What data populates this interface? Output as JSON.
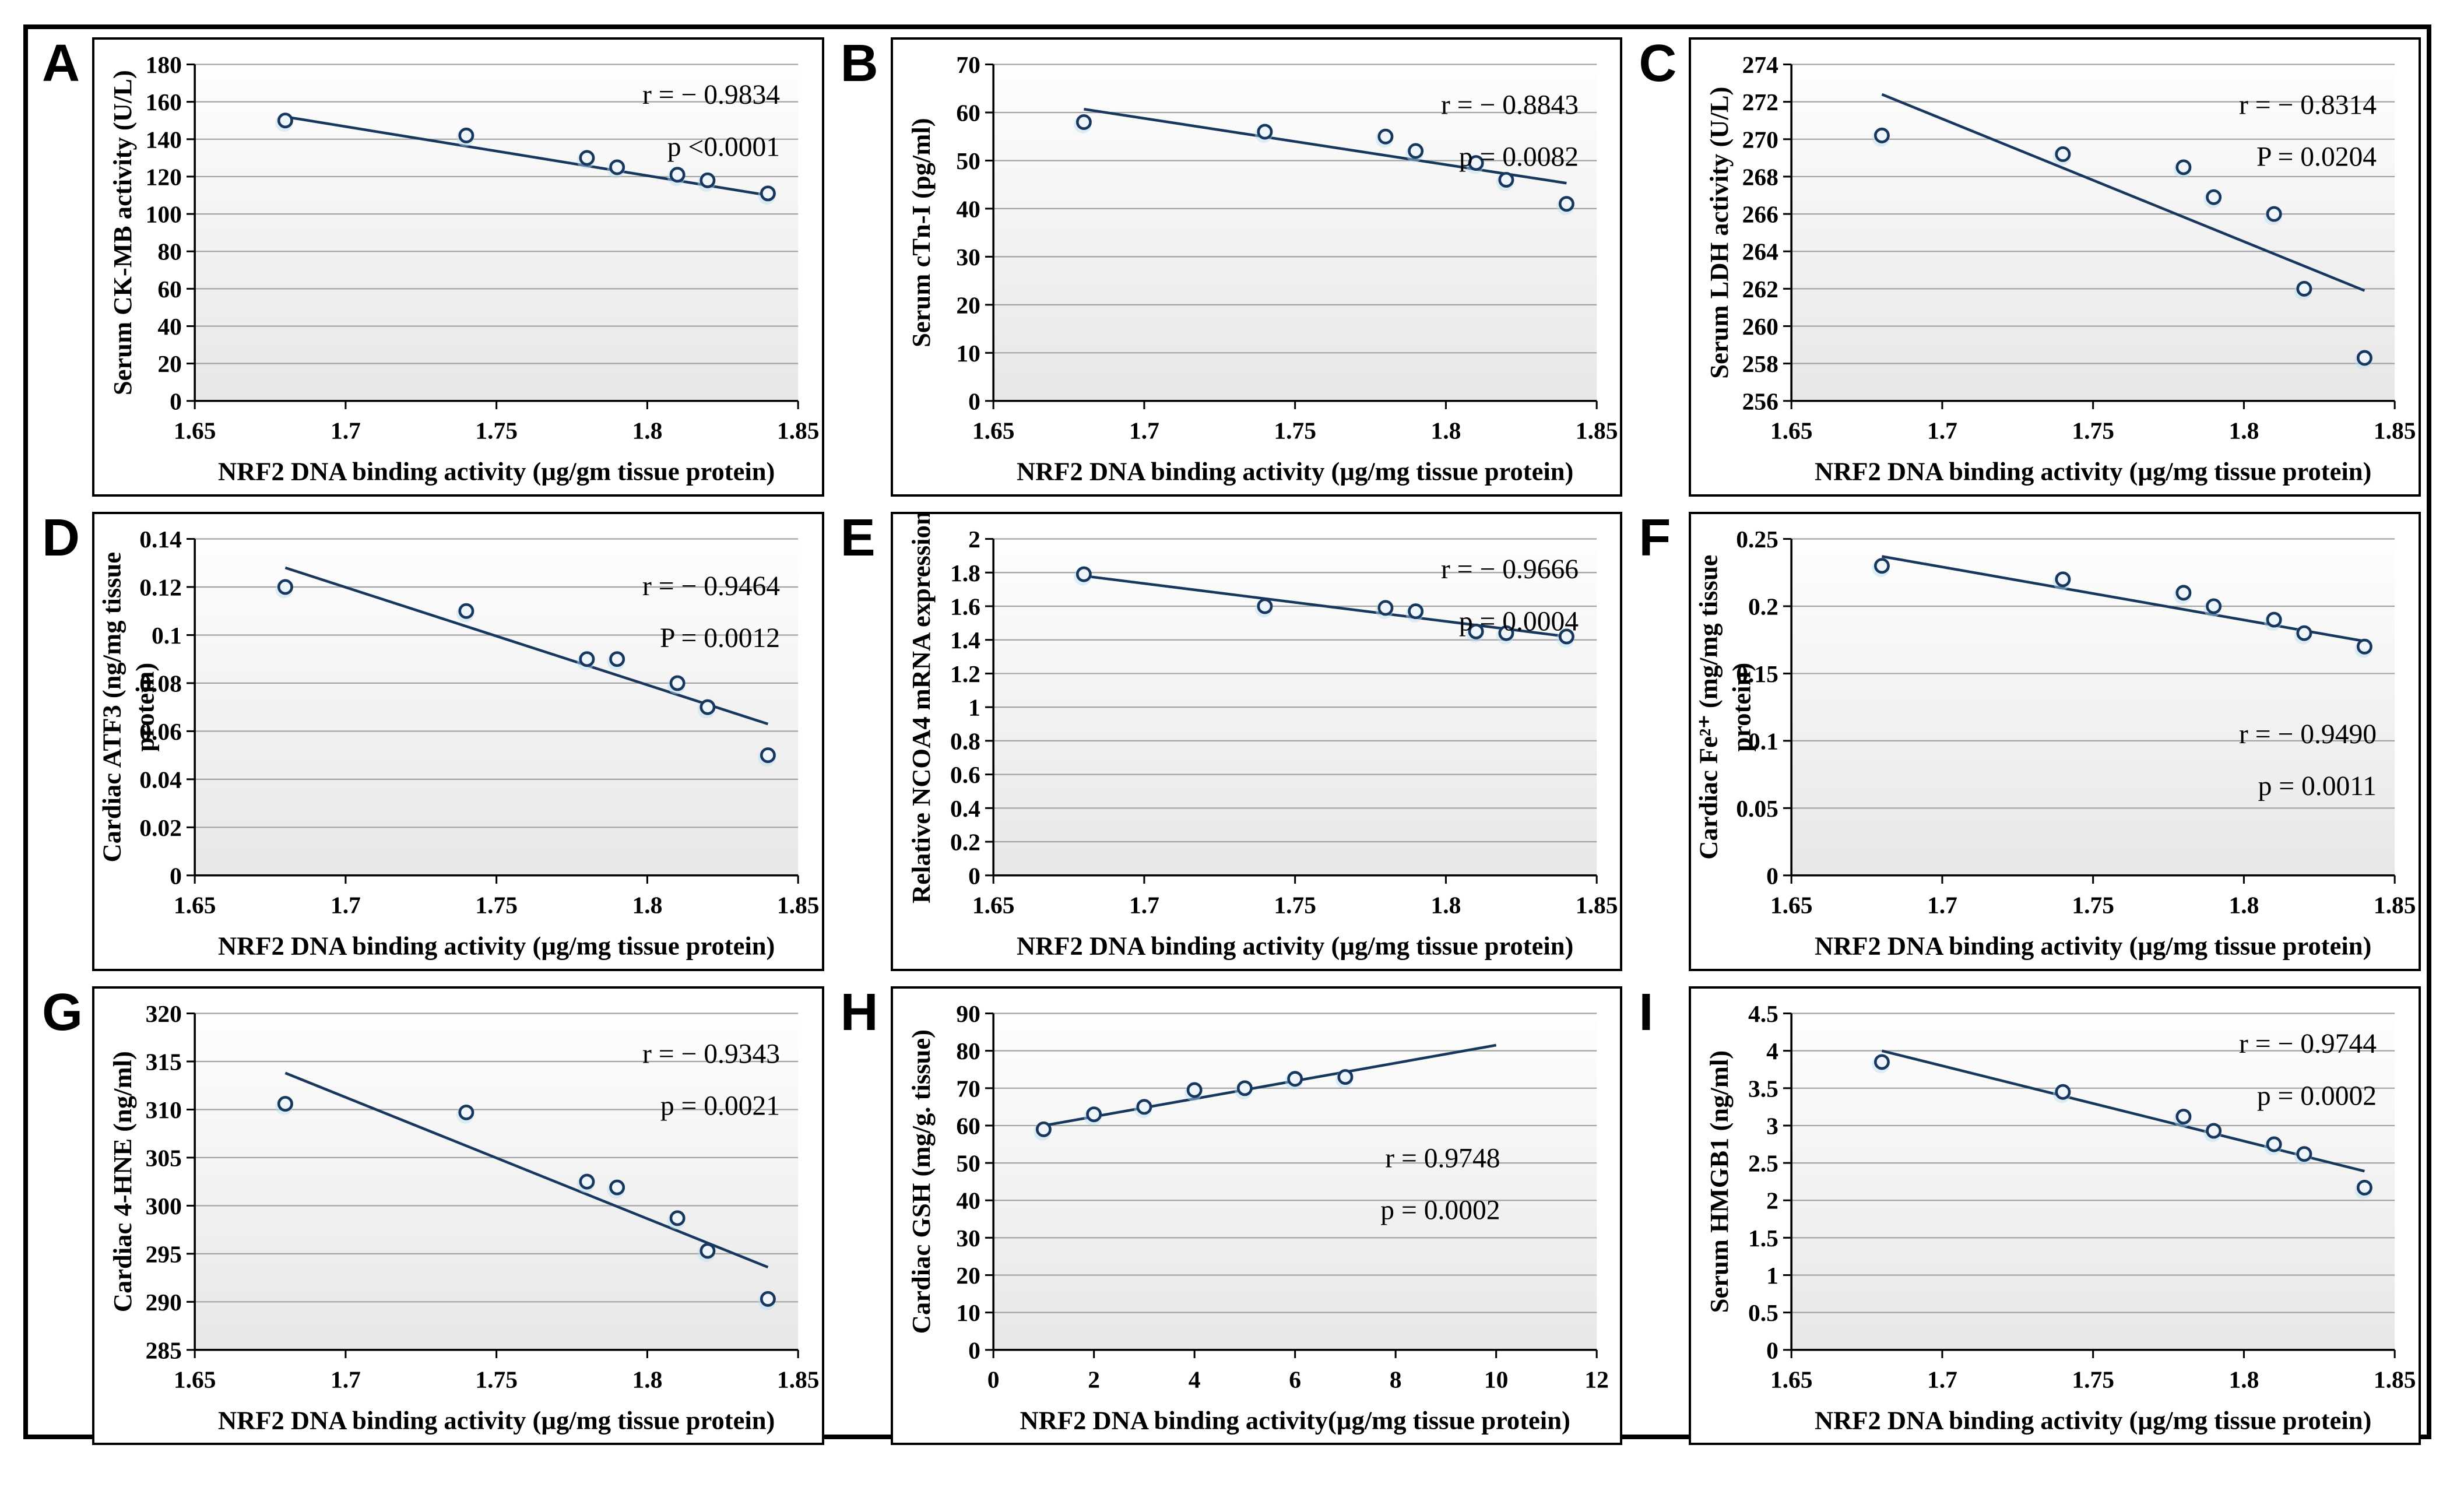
{
  "figure": {
    "description": "Correlation scatter plots between NRF2 DNA binding activity and cardiac/serum markers",
    "panel_letters": [
      "A",
      "B",
      "C",
      "D",
      "E",
      "F",
      "G",
      "H",
      "I"
    ]
  },
  "style": {
    "marker_color": "#17375e",
    "marker_fill": "#eef6fc",
    "halo_color": "#b8ddf0",
    "trend_color": "#17375e",
    "grid_color": "#a3a3a3",
    "axis_color": "#000000",
    "plot_bg_top": "#fefefe",
    "plot_bg_bottom": "#e7e7e7"
  },
  "chart_data": [
    {
      "panel": "A",
      "type": "scatter",
      "ylabel": "Serum CK-MB activity (U/L)",
      "ylabel2": "",
      "xlabel": "NRF2 DNA binding activity (µg/gm tissue protein)",
      "x": [
        1.68,
        1.74,
        1.78,
        1.79,
        1.81,
        1.82,
        1.84
      ],
      "y": [
        150,
        142,
        130,
        125,
        121,
        118,
        111
      ],
      "xlim": [
        1.65,
        1.85
      ],
      "ylim": [
        0,
        180
      ],
      "xticks": [
        1.65,
        1.7,
        1.75,
        1.8,
        1.85
      ],
      "yticks": [
        0,
        20,
        40,
        60,
        80,
        100,
        120,
        140,
        160,
        180
      ],
      "trend": {
        "x1": 1.68,
        "y1": 152,
        "x2": 1.84,
        "y2": 110
      },
      "r_label": "r = − 0.9834",
      "p_label": "p <0.0001",
      "ann_x": 0.97,
      "ann_y": 0.04
    },
    {
      "panel": "B",
      "type": "scatter",
      "ylabel": "Serum cTn-I (pg/ml)",
      "ylabel2": "",
      "xlabel": "NRF2 DNA binding activity (µg/mg tissue protein)",
      "x": [
        1.68,
        1.74,
        1.78,
        1.79,
        1.81,
        1.82,
        1.84
      ],
      "y": [
        58,
        56,
        55,
        52,
        49.5,
        46,
        41
      ],
      "xlim": [
        1.65,
        1.85
      ],
      "ylim": [
        0,
        70
      ],
      "xticks": [
        1.65,
        1.7,
        1.75,
        1.8,
        1.85
      ],
      "yticks": [
        0,
        10,
        20,
        30,
        40,
        50,
        60,
        70
      ],
      "trend": {
        "x1": 1.68,
        "y1": 60.7,
        "x2": 1.84,
        "y2": 45.3
      },
      "r_label": "r = − 0.8843",
      "p_label": "p = 0.0082",
      "ann_x": 0.97,
      "ann_y": 0.07
    },
    {
      "panel": "C",
      "type": "scatter",
      "ylabel": "Serum LDH activity (U/L)",
      "ylabel2": "",
      "xlabel": "NRF2 DNA binding activity (µg/mg tissue protein)",
      "x": [
        1.68,
        1.74,
        1.78,
        1.79,
        1.81,
        1.82,
        1.84
      ],
      "y": [
        270.2,
        269.2,
        268.5,
        266.9,
        266.0,
        262.0,
        258.3
      ],
      "xlim": [
        1.65,
        1.85
      ],
      "ylim": [
        256,
        274
      ],
      "xticks": [
        1.65,
        1.7,
        1.75,
        1.8,
        1.85
      ],
      "yticks": [
        256,
        258,
        260,
        262,
        264,
        266,
        268,
        270,
        272,
        274
      ],
      "trend": {
        "x1": 1.68,
        "y1": 272.4,
        "x2": 1.84,
        "y2": 261.9
      },
      "r_label": "r = − 0.8314",
      "p_label": "P = 0.0204",
      "ann_x": 0.97,
      "ann_y": 0.07
    },
    {
      "panel": "D",
      "type": "scatter",
      "ylabel": "Cardiac ATF3 (ng/mg tissue",
      "ylabel2": "protein)",
      "xlabel": "NRF2 DNA binding activity (µg/mg tissue protein)",
      "x": [
        1.68,
        1.74,
        1.78,
        1.79,
        1.81,
        1.82,
        1.84
      ],
      "y": [
        0.12,
        0.11,
        0.09,
        0.09,
        0.08,
        0.07,
        0.05
      ],
      "xlim": [
        1.65,
        1.85
      ],
      "ylim": [
        0,
        0.14
      ],
      "xticks": [
        1.65,
        1.7,
        1.75,
        1.8,
        1.85
      ],
      "yticks": [
        0,
        0.02,
        0.04,
        0.06,
        0.08,
        0.1,
        0.12,
        0.14
      ],
      "trend": {
        "x1": 1.68,
        "y1": 0.128,
        "x2": 1.84,
        "y2": 0.063
      },
      "r_label": "r = − 0.9464",
      "p_label": "P = 0.0012",
      "ann_x": 0.97,
      "ann_y": 0.09
    },
    {
      "panel": "E",
      "type": "scatter",
      "ylabel": "Relative NCOA4 mRNA expression",
      "ylabel2": "",
      "xlabel": "NRF2 DNA binding activity (µg/mg tissue protein)",
      "x": [
        1.68,
        1.74,
        1.78,
        1.79,
        1.81,
        1.82,
        1.84
      ],
      "y": [
        1.79,
        1.6,
        1.59,
        1.57,
        1.45,
        1.44,
        1.42
      ],
      "xlim": [
        1.65,
        1.85
      ],
      "ylim": [
        0,
        2
      ],
      "xticks": [
        1.65,
        1.7,
        1.75,
        1.8,
        1.85
      ],
      "yticks": [
        0,
        0.2,
        0.4,
        0.6,
        0.8,
        1,
        1.2,
        1.4,
        1.6,
        1.8,
        2
      ],
      "trend": {
        "x1": 1.68,
        "y1": 1.78,
        "x2": 1.84,
        "y2": 1.42
      },
      "r_label": "r = − 0.9666",
      "p_label": "p = 0.0004",
      "ann_x": 0.97,
      "ann_y": 0.04
    },
    {
      "panel": "F",
      "type": "scatter",
      "ylabel": "Cardiac Fe²⁺ (mg/mg tissue",
      "ylabel2": "protein)",
      "xlabel": "NRF2 DNA binding activity (µg/mg tissue protein)",
      "x": [
        1.68,
        1.74,
        1.78,
        1.79,
        1.81,
        1.82,
        1.84
      ],
      "y": [
        0.23,
        0.22,
        0.21,
        0.2,
        0.19,
        0.18,
        0.17
      ],
      "xlim": [
        1.65,
        1.85
      ],
      "ylim": [
        0,
        0.25
      ],
      "xticks": [
        1.65,
        1.7,
        1.75,
        1.8,
        1.85
      ],
      "yticks": [
        0,
        0.05,
        0.1,
        0.15,
        0.2,
        0.25
      ],
      "trend": {
        "x1": 1.68,
        "y1": 0.237,
        "x2": 1.84,
        "y2": 0.174
      },
      "r_label": "r = − 0.9490",
      "p_label": "p = 0.0011",
      "ann_x": 0.97,
      "ann_y": 0.53
    },
    {
      "panel": "G",
      "type": "scatter",
      "ylabel": "Cardiac 4-HNE (ng/ml)",
      "ylabel2": "",
      "xlabel": "NRF2 DNA binding activity (µg/mg tissue protein)",
      "x": [
        1.68,
        1.74,
        1.78,
        1.79,
        1.81,
        1.82,
        1.84
      ],
      "y": [
        310.6,
        309.7,
        302.5,
        301.9,
        298.7,
        295.3,
        290.3
      ],
      "xlim": [
        1.65,
        1.85
      ],
      "ylim": [
        285,
        320
      ],
      "xticks": [
        1.65,
        1.7,
        1.75,
        1.8,
        1.85
      ],
      "yticks": [
        285,
        290,
        295,
        300,
        305,
        310,
        315,
        320
      ],
      "trend": {
        "x1": 1.68,
        "y1": 313.8,
        "x2": 1.84,
        "y2": 293.6
      },
      "r_label": "r = − 0.9343",
      "p_label": "p = 0.0021",
      "ann_x": 0.97,
      "ann_y": 0.07
    },
    {
      "panel": "H",
      "type": "scatter",
      "ylabel": "Cardiac GSH (mg/g. tissue)",
      "ylabel2": "",
      "xlabel": "NRF2 DNA binding activity(µg/mg tissue protein)",
      "x": [
        1,
        2,
        3,
        4,
        5,
        6,
        7
      ],
      "y": [
        59,
        63,
        65,
        69.5,
        70,
        72.5,
        73
      ],
      "xlim": [
        0,
        12
      ],
      "ylim": [
        0,
        90
      ],
      "xticks": [
        0,
        2,
        4,
        6,
        8,
        10,
        12
      ],
      "yticks": [
        0,
        10,
        20,
        30,
        40,
        50,
        60,
        70,
        80,
        90
      ],
      "trend": {
        "x1": 1,
        "y1": 60,
        "x2": 10,
        "y2": 81.5
      },
      "r_label": "r = 0.9748",
      "p_label": "p = 0.0002",
      "ann_x": 0.84,
      "ann_y": 0.38
    },
    {
      "panel": "I",
      "type": "scatter",
      "ylabel": "Serum HMGB1 (ng/ml)",
      "ylabel2": "",
      "xlabel": "NRF2 DNA binding activity (µg/mg tissue protein)",
      "x": [
        1.68,
        1.74,
        1.78,
        1.79,
        1.81,
        1.82,
        1.84
      ],
      "y": [
        3.85,
        3.45,
        3.12,
        2.93,
        2.75,
        2.62,
        2.17
      ],
      "xlim": [
        1.65,
        1.85
      ],
      "ylim": [
        0,
        4.5
      ],
      "xticks": [
        1.65,
        1.7,
        1.75,
        1.8,
        1.85
      ],
      "yticks": [
        0,
        0.5,
        1,
        1.5,
        2,
        2.5,
        3,
        3.5,
        4,
        4.5
      ],
      "trend": {
        "x1": 1.68,
        "y1": 4.0,
        "x2": 1.84,
        "y2": 2.39
      },
      "r_label": "r = − 0.9744",
      "p_label": "p = 0.0002",
      "ann_x": 0.97,
      "ann_y": 0.04
    }
  ]
}
